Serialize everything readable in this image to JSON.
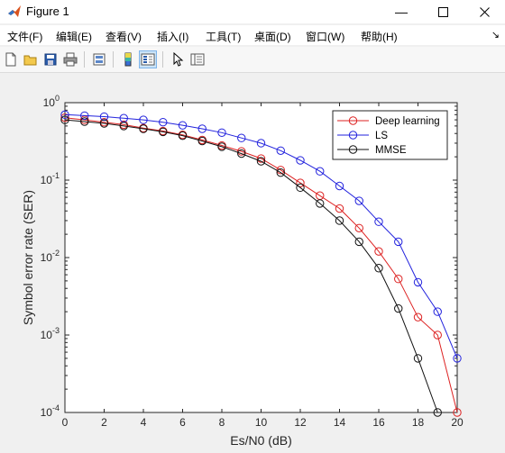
{
  "window": {
    "title": "Figure 1",
    "controls": {
      "minimize": "—",
      "maximize": "☐",
      "close": "✕"
    }
  },
  "menu": {
    "items": [
      "文件(F)",
      "编辑(E)",
      "查看(V)",
      "插入(I)",
      "工具(T)",
      "桌面(D)",
      "窗口(W)",
      "帮助(H)"
    ],
    "dock": "↘"
  },
  "toolbar": {
    "icons": [
      "new-figure-icon",
      "open-file-icon",
      "save-icon",
      "print-icon",
      "link-plot-icon",
      "colorbar-icon",
      "legend-icon",
      "pointer-icon",
      "property-inspector-icon"
    ]
  },
  "chart_data": {
    "type": "line",
    "xlabel": "Es/N0 (dB)",
    "ylabel": "Symbol error rate (SER)",
    "xlim": [
      0,
      20
    ],
    "ylim": [
      0.0001,
      1
    ],
    "yscale": "log",
    "xticks": [
      "0",
      "2",
      "4",
      "6",
      "8",
      "10",
      "12",
      "14",
      "16",
      "18",
      "20"
    ],
    "yticks": [
      {
        "value": 1,
        "base": "10",
        "exp": "0"
      },
      {
        "value": 0.1,
        "base": "10",
        "exp": "-1"
      },
      {
        "value": 0.01,
        "base": "10",
        "exp": "-2"
      },
      {
        "value": 0.001,
        "base": "10",
        "exp": "-3"
      },
      {
        "value": 0.0001,
        "base": "10",
        "exp": "-4"
      }
    ],
    "legend_position": "top-right",
    "x": [
      0,
      1,
      2,
      3,
      4,
      5,
      6,
      7,
      8,
      9,
      10,
      11,
      12,
      13,
      14,
      15,
      16,
      17,
      18,
      19,
      20
    ],
    "series": [
      {
        "name": "Deep learning",
        "color": "#dd2222",
        "values": [
          0.64,
          0.6,
          0.56,
          0.52,
          0.47,
          0.43,
          0.385,
          0.33,
          0.28,
          0.235,
          0.19,
          0.135,
          0.092,
          0.063,
          0.043,
          0.024,
          0.012,
          0.0053,
          0.0017,
          0.001,
          0.0001
        ]
      },
      {
        "name": "LS",
        "color": "#2222dd",
        "values": [
          0.7,
          0.68,
          0.66,
          0.63,
          0.6,
          0.56,
          0.51,
          0.46,
          0.41,
          0.35,
          0.3,
          0.24,
          0.18,
          0.13,
          0.084,
          0.054,
          0.029,
          0.016,
          0.0048,
          0.002,
          0.0005
        ]
      },
      {
        "name": "MMSE",
        "color": "#111111",
        "values": [
          0.6,
          0.57,
          0.54,
          0.5,
          0.46,
          0.42,
          0.375,
          0.32,
          0.27,
          0.22,
          0.175,
          0.125,
          0.08,
          0.05,
          0.03,
          0.016,
          0.0073,
          0.0022,
          0.0005,
          0.0001,
          null
        ]
      }
    ]
  }
}
